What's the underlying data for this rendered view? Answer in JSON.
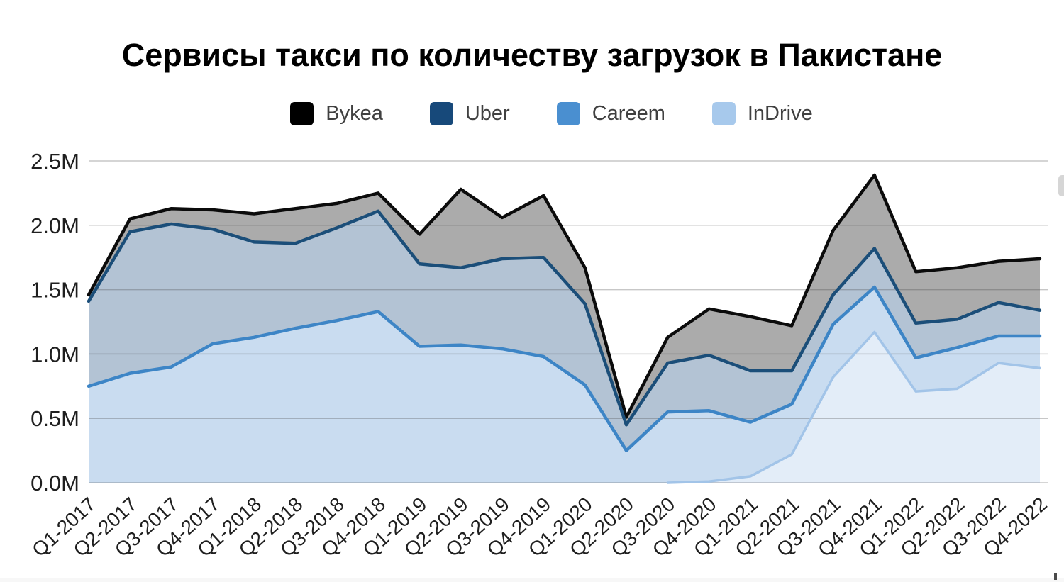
{
  "title": "Сервисы такси по количеству загрузок в Пакистане",
  "legend": {
    "items": [
      {
        "label": "Bykea",
        "color": "#000000"
      },
      {
        "label": "Uber",
        "color": "#17497A"
      },
      {
        "label": "Careem",
        "color": "#4A8FD0"
      },
      {
        "label": "InDrive",
        "color": "#A7C9EC"
      }
    ]
  },
  "chart_data": {
    "type": "area",
    "title": "Сервисы такси по количеству загрузок в Пакистане",
    "xlabel": "",
    "ylabel": "",
    "ylim": [
      0,
      2.5
    ],
    "grid": "horizontal",
    "legend_position": "top",
    "y_ticks": [
      {
        "label": "0.0M",
        "value": 0.0
      },
      {
        "label": "0.5M",
        "value": 0.5
      },
      {
        "label": "1.0M",
        "value": 1.0
      },
      {
        "label": "1.5M",
        "value": 1.5
      },
      {
        "label": "2.0M",
        "value": 2.0
      },
      {
        "label": "2.5M",
        "value": 2.5
      }
    ],
    "categories": [
      "Q1-2017",
      "Q2-2017",
      "Q3-2017",
      "Q4-2017",
      "Q1-2018",
      "Q2-2018",
      "Q3-2018",
      "Q4-2018",
      "Q1-2019",
      "Q2-2019",
      "Q3-2019",
      "Q4-2019",
      "Q1-2020",
      "Q2-2020",
      "Q3-2020",
      "Q4-2020",
      "Q1-2021",
      "Q2-2021",
      "Q3-2021",
      "Q4-2021",
      "Q1-2022",
      "Q2-2022",
      "Q3-2022",
      "Q4-2022"
    ],
    "unit": "M downloads",
    "series": [
      {
        "name": "Bykea",
        "stroke": "#0B0B0B",
        "fill": "#ABABAB",
        "stroke_width": 4.5,
        "values": [
          1.46,
          2.05,
          2.13,
          2.12,
          2.09,
          2.13,
          2.17,
          2.25,
          1.93,
          2.28,
          2.06,
          2.23,
          1.67,
          0.51,
          1.13,
          1.35,
          1.29,
          1.22,
          1.96,
          2.39,
          1.64,
          1.67,
          1.72,
          1.74
        ]
      },
      {
        "name": "Uber",
        "stroke": "#1B4E79",
        "fill": "#B3C3D4",
        "stroke_width": 4.5,
        "values": [
          1.41,
          1.95,
          2.01,
          1.97,
          1.87,
          1.86,
          1.98,
          2.11,
          1.7,
          1.67,
          1.74,
          1.75,
          1.39,
          0.45,
          0.93,
          0.99,
          0.87,
          0.87,
          1.46,
          1.82,
          1.24,
          1.27,
          1.4,
          1.34
        ]
      },
      {
        "name": "Careem",
        "stroke": "#3D85C6",
        "fill": "#C9DCF0",
        "stroke_width": 4.5,
        "values": [
          0.75,
          0.85,
          0.9,
          1.08,
          1.13,
          1.2,
          1.26,
          1.33,
          1.06,
          1.07,
          1.04,
          0.98,
          0.76,
          0.25,
          0.55,
          0.56,
          0.47,
          0.61,
          1.23,
          1.52,
          0.97,
          1.05,
          1.14,
          1.14
        ]
      },
      {
        "name": "InDrive",
        "stroke": "#A2C4E8",
        "fill": "#E3EDF8",
        "stroke_width": 3.5,
        "values": [
          0,
          0,
          0,
          0,
          0,
          0,
          0,
          0,
          0,
          0,
          0,
          0,
          0,
          0,
          0,
          0.01,
          0.05,
          0.22,
          0.82,
          1.17,
          0.71,
          0.73,
          0.93,
          0.89
        ]
      }
    ]
  }
}
